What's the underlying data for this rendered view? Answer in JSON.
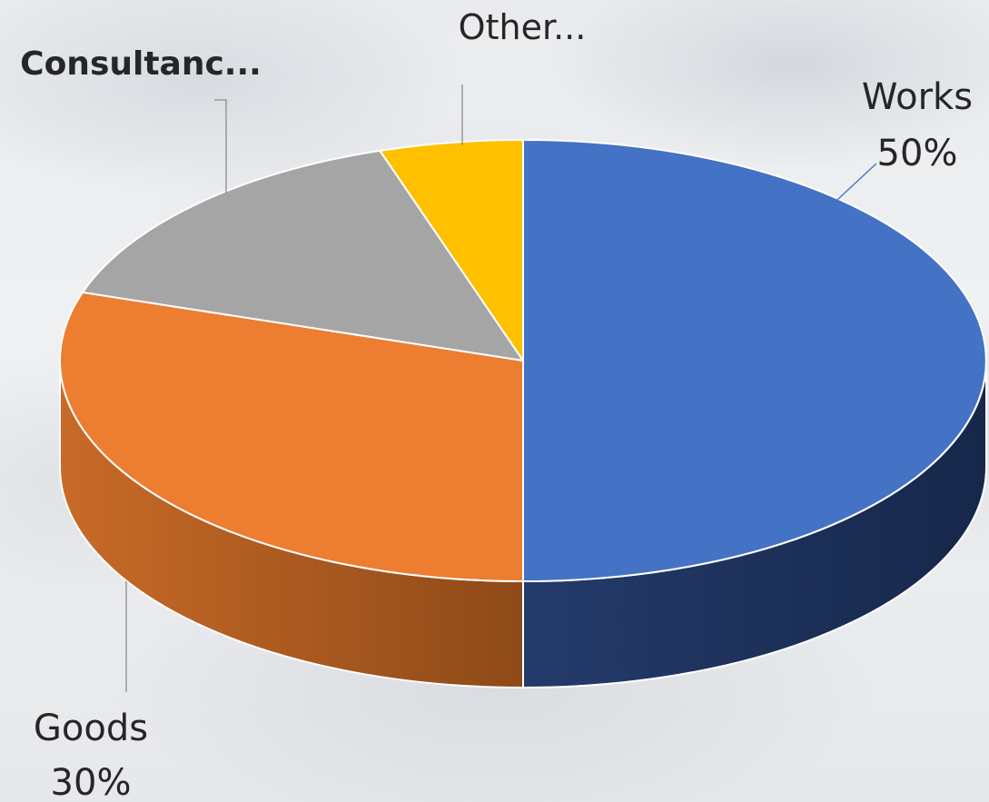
{
  "chart_data": {
    "type": "pie",
    "style": "3d",
    "slices": [
      {
        "name": "Works",
        "value": 50,
        "label_lines": [
          "Works",
          "50%"
        ],
        "color": "#4472C4",
        "side_color": "#1F3158"
      },
      {
        "name": "Goods",
        "value": 30,
        "label_lines": [
          "Goods",
          "30%"
        ],
        "color": "#ED7D31",
        "side_color": "#A9541C"
      },
      {
        "name": "Consultancy",
        "value": 15,
        "label_lines": [
          "Consultanc..."
        ],
        "color": "#A5A5A5",
        "side_color": "#6E6E6E"
      },
      {
        "name": "Other",
        "value": 5,
        "label_lines": [
          "Other..."
        ],
        "color": "#FFC000",
        "side_color": "#B58800"
      }
    ],
    "legend": "none"
  }
}
